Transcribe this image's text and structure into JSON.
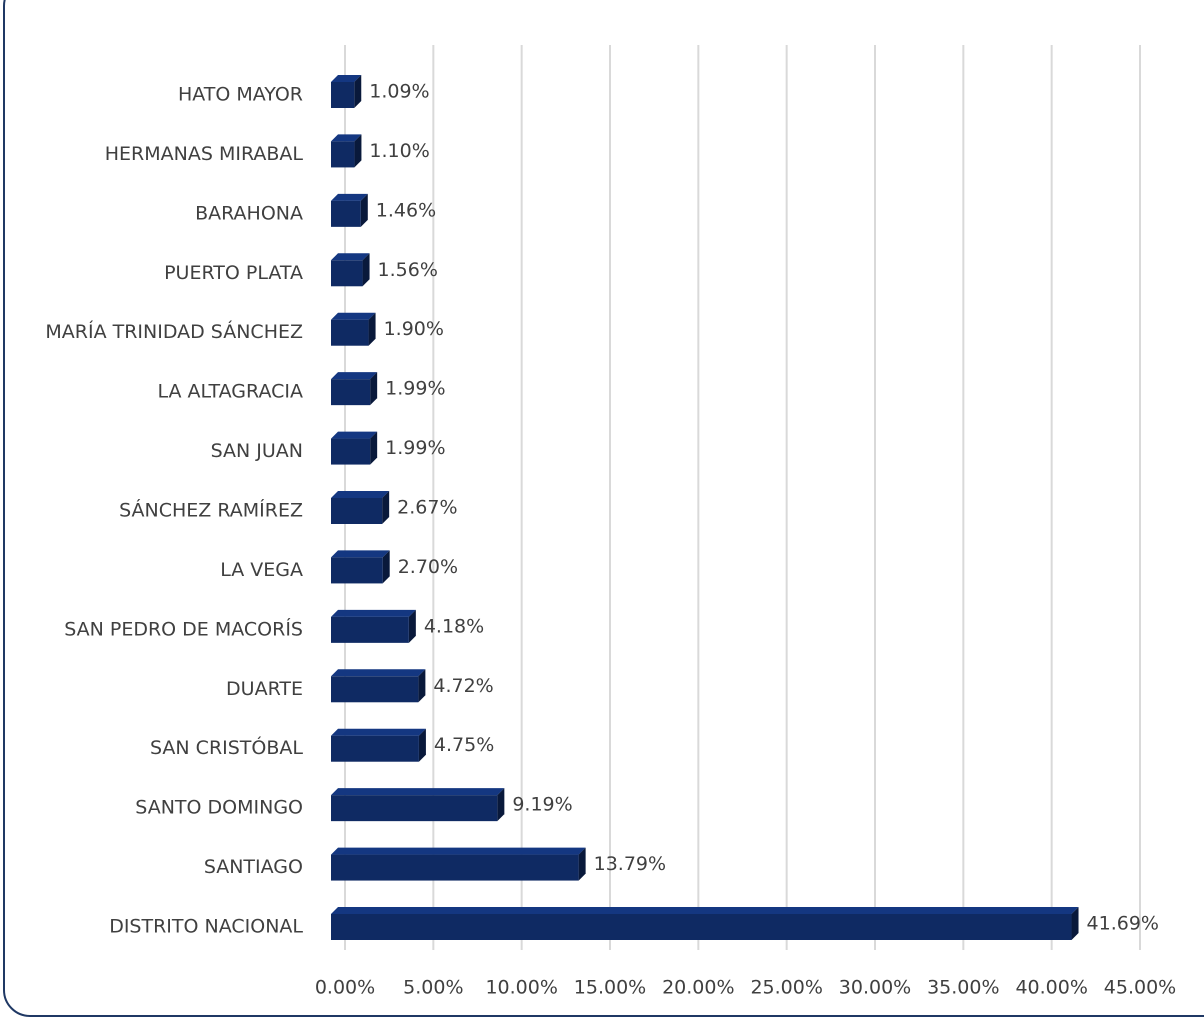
{
  "chart_data": {
    "type": "bar",
    "orientation": "horizontal",
    "categories": [
      "HATO MAYOR",
      "HERMANAS MIRABAL",
      "BARAHONA",
      "PUERTO PLATA",
      "MARÍA TRINIDAD SÁNCHEZ",
      "LA ALTAGRACIA",
      "SAN JUAN",
      "SÁNCHEZ RAMÍREZ",
      "LA VEGA",
      "SAN PEDRO DE MACORÍS",
      "DUARTE",
      "SAN CRISTÓBAL",
      "SANTO DOMINGO",
      "SANTIAGO",
      "DISTRITO NACIONAL"
    ],
    "values": [
      1.09,
      1.1,
      1.46,
      1.56,
      1.9,
      1.99,
      1.99,
      2.67,
      2.7,
      4.18,
      4.72,
      4.75,
      9.19,
      13.79,
      41.69
    ],
    "value_labels": [
      "1.09%",
      "1.10%",
      "1.46%",
      "1.56%",
      "1.90%",
      "1.99%",
      "1.99%",
      "2.67%",
      "2.70%",
      "4.18%",
      "4.72%",
      "4.75%",
      "9.19%",
      "13.79%",
      "41.69%"
    ],
    "color": "#0f2a63",
    "xlim": [
      0,
      45
    ],
    "xticks": [
      {
        "value": 0,
        "label": "0.00%"
      },
      {
        "value": 5,
        "label": "5.00%"
      },
      {
        "value": 10,
        "label": "10.00%"
      },
      {
        "value": 15,
        "label": "15.00%"
      },
      {
        "value": 20,
        "label": "20.00%"
      },
      {
        "value": 25,
        "label": "25.00%"
      },
      {
        "value": 30,
        "label": "30.00%"
      },
      {
        "value": 35,
        "label": "35.00%"
      },
      {
        "value": 40,
        "label": "40.00%"
      },
      {
        "value": 45,
        "label": "45.00%"
      }
    ],
    "grid": true
  }
}
